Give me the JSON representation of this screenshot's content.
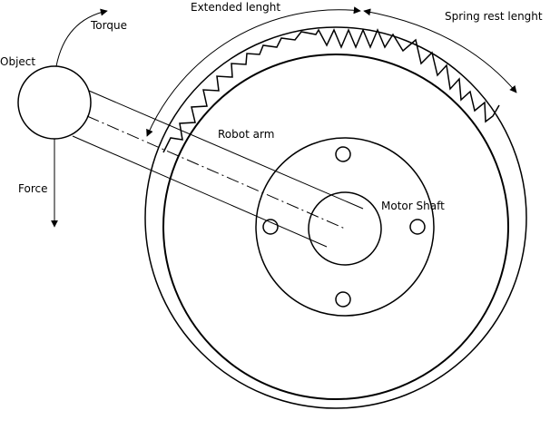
{
  "diagram": {
    "labels": {
      "object": "Object",
      "torque": "Torque",
      "force": "Force",
      "robot_arm": "Robot arm",
      "motor_shaft": "Motor Shaft",
      "extended_length": "Extended lenght",
      "spring_rest_length": "Spring rest lenght"
    },
    "colors": {
      "stroke": "#000000",
      "background": "#ffffff"
    }
  }
}
